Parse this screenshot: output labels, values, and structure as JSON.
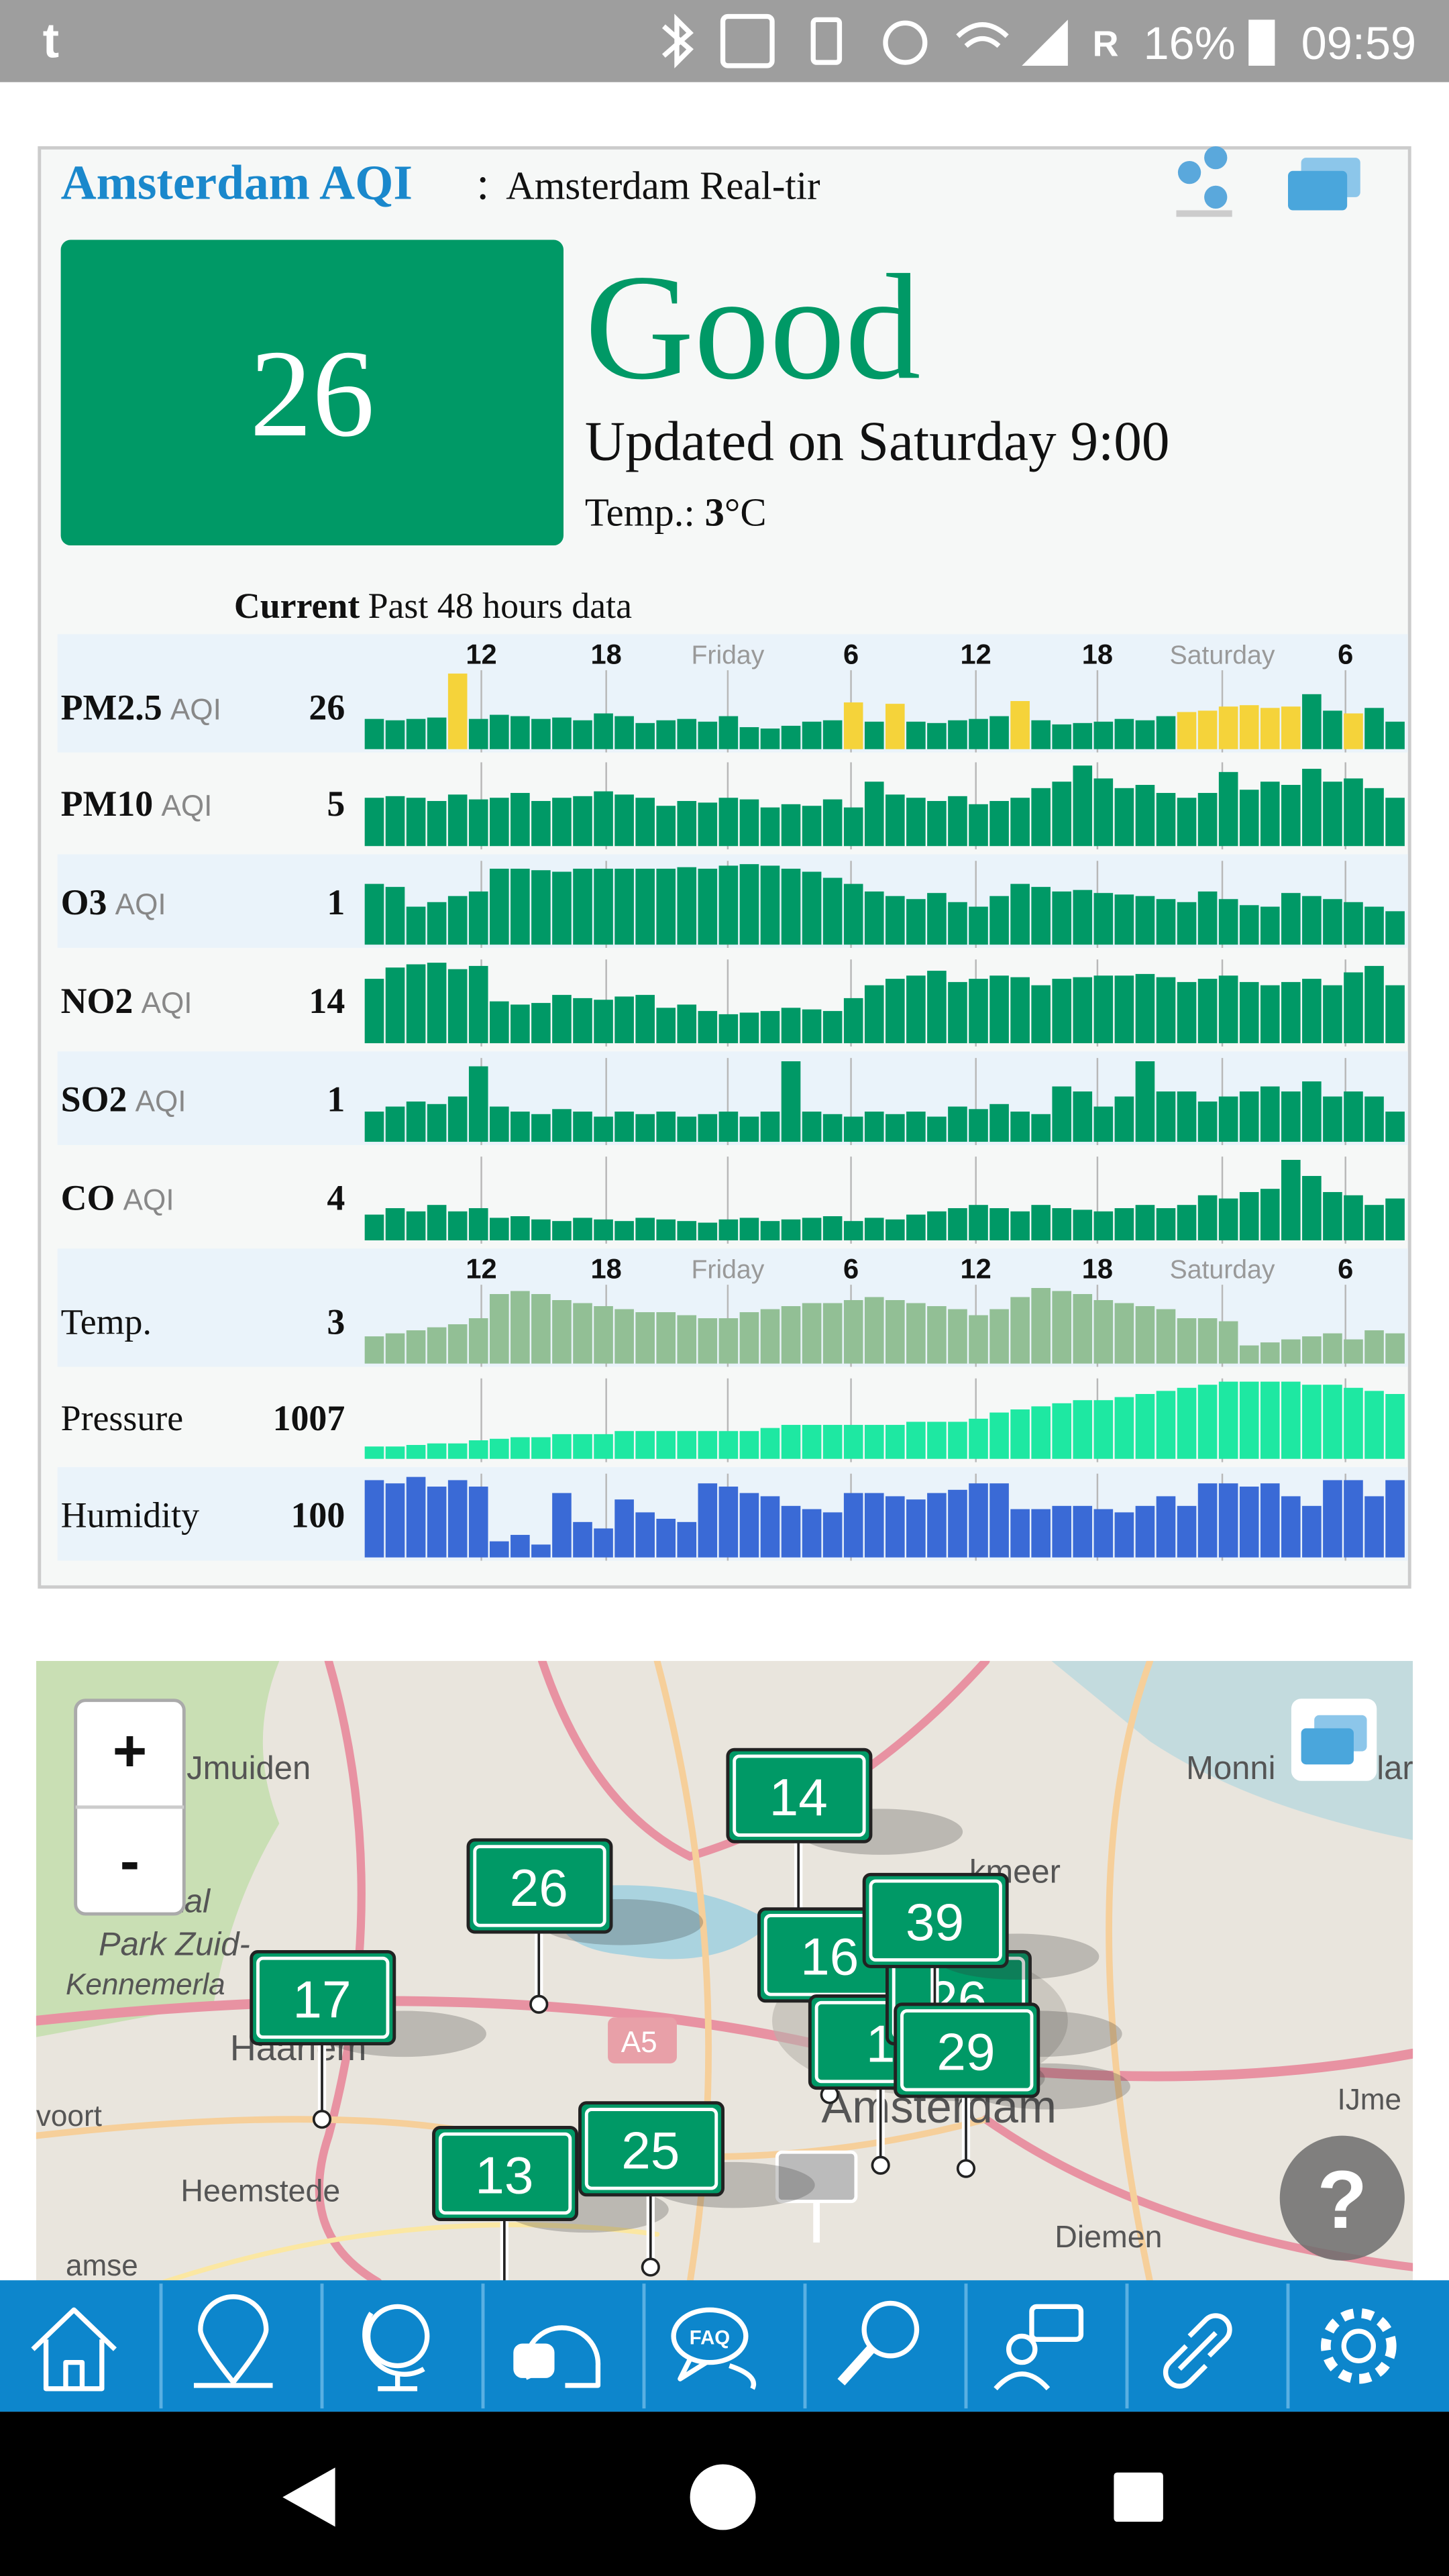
{
  "status_bar": {
    "app_icon": "t",
    "network": "R",
    "battery": "16%",
    "time": "09:59"
  },
  "header": {
    "city": "Amsterdam AQI",
    "separator": ":",
    "subtitle": "Amsterdam Real-tir"
  },
  "aqi": {
    "value": 26,
    "level": "Good",
    "updated": "Updated on Saturday 9:00",
    "temp_label": "Temp.:",
    "temp_value": 3,
    "temp_unit": "°C"
  },
  "history": {
    "current_label": "Current",
    "past_label": "Past 48 hours data",
    "time_labels": [
      "12",
      "18",
      "Friday",
      "6",
      "12",
      "18",
      "Saturday",
      "6"
    ],
    "rows": [
      {
        "name": "PM2.5",
        "unit": "AQI",
        "current": 26,
        "color": "#009966",
        "values": [
          22,
          21,
          22,
          23,
          55,
          22,
          25,
          24,
          22,
          23,
          21,
          26,
          24,
          19,
          21,
          22,
          20,
          24,
          16,
          15,
          17,
          20,
          21,
          34,
          20,
          33,
          20,
          19,
          21,
          22,
          24,
          35,
          21,
          18,
          19,
          20,
          22,
          21,
          24,
          27,
          28,
          31,
          32,
          30,
          31,
          40,
          28,
          26,
          30,
          20
        ],
        "colors": [
          "#009966",
          "#009966",
          "#009966",
          "#009966",
          "#f5d33a",
          "#009966",
          "#009966",
          "#009966",
          "#009966",
          "#009966",
          "#009966",
          "#009966",
          "#009966",
          "#009966",
          "#009966",
          "#009966",
          "#009966",
          "#009966",
          "#009966",
          "#009966",
          "#009966",
          "#009966",
          "#009966",
          "#f5d33a",
          "#009966",
          "#f5d33a",
          "#009966",
          "#009966",
          "#009966",
          "#009966",
          "#009966",
          "#f5d33a",
          "#009966",
          "#009966",
          "#009966",
          "#009966",
          "#009966",
          "#009966",
          "#009966",
          "#f5d33a",
          "#f5d33a",
          "#f5d33a",
          "#f5d33a",
          "#f5d33a",
          "#f5d33a",
          "#009966",
          "#009966",
          "#f5d33a",
          "#009966",
          "#009966"
        ]
      },
      {
        "name": "PM10",
        "unit": "AQI",
        "current": 5,
        "color": "#009966",
        "values": [
          30,
          31,
          30,
          28,
          32,
          29,
          30,
          33,
          28,
          30,
          31,
          34,
          32,
          30,
          25,
          28,
          27,
          30,
          29,
          24,
          26,
          25,
          29,
          24,
          40,
          32,
          30,
          28,
          31,
          26,
          28,
          30,
          36,
          40,
          50,
          42,
          36,
          38,
          33,
          30,
          33,
          46,
          35,
          40,
          38,
          48,
          40,
          42,
          36,
          30
        ]
      },
      {
        "name": "O3",
        "unit": "AQI",
        "current": 1,
        "color": "#009966",
        "values": [
          40,
          38,
          25,
          28,
          32,
          35,
          50,
          50,
          49,
          48,
          50,
          50,
          50,
          50,
          50,
          51,
          50,
          52,
          53,
          52,
          50,
          48,
          44,
          40,
          35,
          32,
          30,
          34,
          28,
          25,
          32,
          40,
          38,
          35,
          36,
          34,
          33,
          32,
          30,
          28,
          35,
          30,
          26,
          25,
          34,
          32,
          30,
          28,
          25,
          22
        ]
      },
      {
        "name": "NO2",
        "unit": "AQI",
        "current": 14,
        "color": "#009966",
        "values": [
          40,
          47,
          49,
          50,
          46,
          48,
          26,
          24,
          25,
          30,
          28,
          27,
          29,
          30,
          22,
          24,
          20,
          18,
          19,
          20,
          22,
          21,
          20,
          28,
          36,
          40,
          42,
          45,
          38,
          40,
          42,
          41,
          36,
          40,
          41,
          42,
          42,
          43,
          41,
          38,
          40,
          42,
          38,
          36,
          38,
          40,
          36,
          44,
          48,
          36
        ]
      },
      {
        "name": "SO2",
        "unit": "AQI",
        "current": 1,
        "color": "#009966",
        "values": [
          12,
          14,
          16,
          15,
          18,
          30,
          14,
          12,
          11,
          13,
          12,
          10,
          12,
          11,
          12,
          10,
          11,
          12,
          10,
          12,
          32,
          12,
          11,
          10,
          12,
          11,
          12,
          10,
          14,
          13,
          15,
          12,
          11,
          22,
          20,
          14,
          18,
          32,
          20,
          20,
          16,
          18,
          20,
          22,
          20,
          24,
          18,
          20,
          18,
          12
        ]
      },
      {
        "name": "CO",
        "unit": "AQI",
        "current": 4,
        "color": "#009966",
        "values": [
          16,
          20,
          18,
          22,
          18,
          20,
          14,
          15,
          13,
          12,
          14,
          13,
          12,
          14,
          13,
          12,
          11,
          13,
          14,
          12,
          13,
          14,
          15,
          12,
          14,
          13,
          16,
          18,
          20,
          22,
          20,
          18,
          22,
          20,
          19,
          18,
          20,
          22,
          20,
          22,
          28,
          26,
          30,
          32,
          50,
          40,
          30,
          28,
          22,
          26
        ]
      },
      {
        "name": "Temp.",
        "current": 3,
        "color": "#92bf95",
        "values": [
          18,
          20,
          22,
          24,
          26,
          30,
          46,
          48,
          46,
          42,
          40,
          38,
          36,
          34,
          34,
          32,
          30,
          30,
          34,
          36,
          38,
          40,
          40,
          42,
          44,
          42,
          40,
          38,
          36,
          32,
          36,
          44,
          50,
          48,
          46,
          42,
          40,
          38,
          36,
          30,
          30,
          28,
          12,
          14,
          16,
          18,
          20,
          16,
          22,
          20
        ]
      },
      {
        "name": "Pressure",
        "current": 1007,
        "color": "#1ee8a2",
        "values": [
          8,
          8,
          9,
          10,
          10,
          12,
          13,
          14,
          14,
          16,
          16,
          16,
          18,
          18,
          18,
          18,
          18,
          18,
          18,
          20,
          22,
          22,
          22,
          22,
          22,
          22,
          24,
          24,
          24,
          26,
          30,
          32,
          34,
          36,
          38,
          38,
          40,
          42,
          44,
          46,
          48,
          50,
          50,
          50,
          50,
          48,
          48,
          46,
          44,
          42
        ]
      },
      {
        "name": "Humidity",
        "current": 100,
        "color": "#3a6ad6",
        "values": [
          48,
          46,
          50,
          44,
          48,
          44,
          10,
          14,
          8,
          40,
          22,
          18,
          36,
          28,
          24,
          22,
          46,
          44,
          40,
          38,
          32,
          30,
          28,
          40,
          40,
          38,
          36,
          40,
          42,
          46,
          46,
          30,
          30,
          32,
          32,
          30,
          28,
          32,
          38,
          32,
          46,
          46,
          44,
          46,
          38,
          32,
          48,
          48,
          38,
          48
        ]
      }
    ]
  },
  "map": {
    "zoom_in": "+",
    "zoom_out": "-",
    "help": "?",
    "places": [
      "IJmuiden",
      "Monni",
      "lar",
      "naal",
      "Park Zuid-",
      "Kennemerla",
      "Haarlem",
      "A5",
      "voort",
      "Heemstede",
      "kmeer",
      "Amsterdam",
      "IJme",
      "Diemen",
      "amse"
    ],
    "markers": [
      "14",
      "26",
      "17",
      "13",
      "25",
      "16",
      "1",
      "26",
      "39",
      "29"
    ]
  },
  "nav": {
    "faq": "FAQ"
  }
}
